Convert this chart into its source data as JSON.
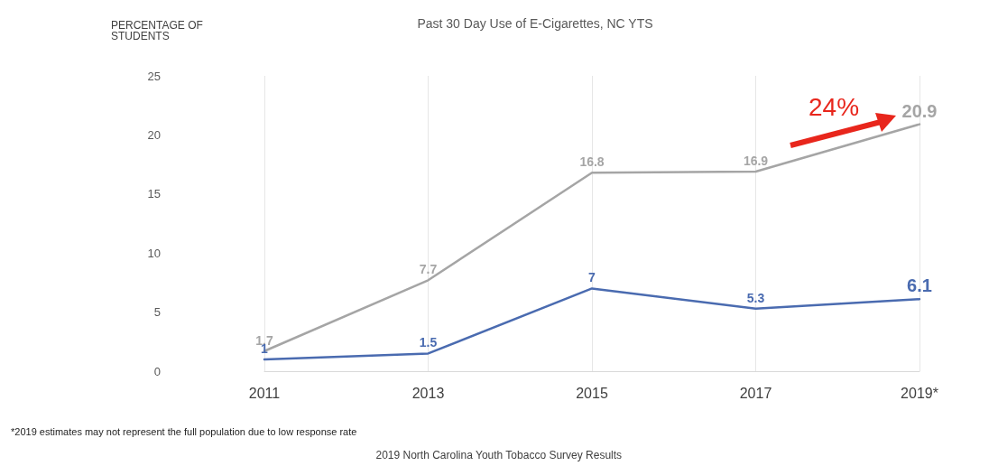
{
  "chart_data": {
    "type": "line",
    "title": "Past 30 Day Use of E-Cigarettes, NC YTS",
    "ylabel": "PERCENTAGE OF STUDENTS",
    "categories": [
      "2011",
      "2013",
      "2015",
      "2017",
      "2019*"
    ],
    "series": [
      {
        "color": "#a5a5a5",
        "values": [
          1.7,
          7.7,
          16.8,
          16.9,
          20.9
        ]
      },
      {
        "color": "#4a6bb0",
        "values": [
          1,
          1.5,
          7,
          5.3,
          6.1
        ]
      }
    ],
    "ylim": [
      0,
      25
    ],
    "yticks": [
      0,
      5,
      10,
      15,
      20,
      25
    ],
    "grid": "x",
    "marker": "none",
    "line_style": "solid",
    "data_labels": true,
    "annotations": [
      "24%",
      "*2019 estimates may not represent the full population due to low response rate",
      "2019 North Carolina Youth Tobacco Survey Results"
    ]
  }
}
